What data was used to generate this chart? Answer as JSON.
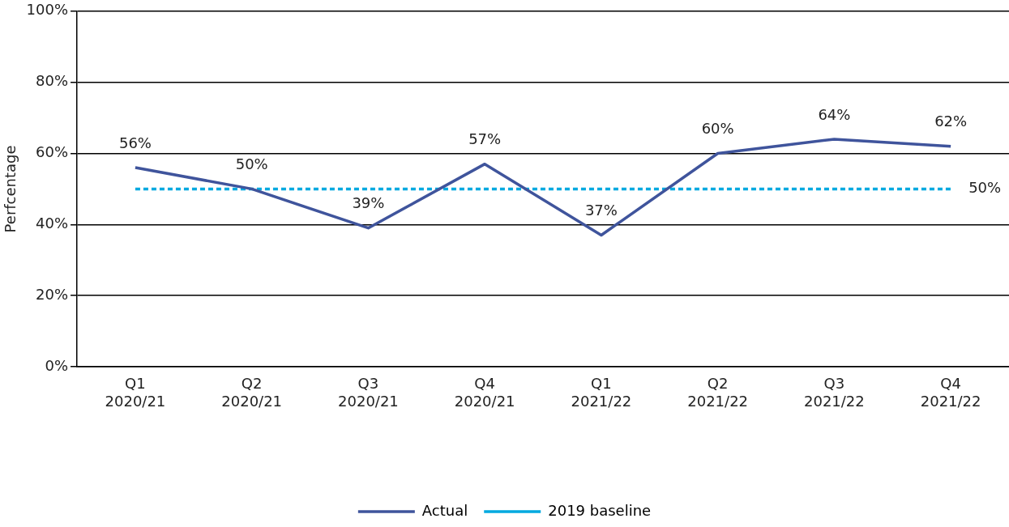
{
  "chart_data": {
    "type": "line",
    "ylabel": "Perfcentage",
    "categories": [
      "Q1\n2020/21",
      "Q2\n2020/21",
      "Q3\n2020/21",
      "Q4\n2020/21",
      "Q1\n2021/22",
      "Q2\n2021/22",
      "Q3\n2021/22",
      "Q4\n2021/22"
    ],
    "series": [
      {
        "name": "Actual",
        "color": "#3f549c",
        "line_style": "solid",
        "values": [
          56,
          50,
          39,
          57,
          37,
          60,
          64,
          62
        ],
        "value_labels": [
          "56%",
          "50%",
          "39%",
          "57%",
          "37%",
          "60%",
          "64%",
          "62%"
        ]
      },
      {
        "name": "2019 baseline",
        "color": "#00a9e0",
        "line_style": "dashed",
        "values": [
          50,
          50,
          50,
          50,
          50,
          50,
          50,
          50
        ],
        "value_labels": [
          null,
          null,
          null,
          null,
          null,
          null,
          null,
          "50%"
        ]
      }
    ],
    "ylim": [
      0,
      100
    ],
    "yticks": [
      {
        "value": 0,
        "label": "0%"
      },
      {
        "value": 20,
        "label": "20%"
      },
      {
        "value": 40,
        "label": "40%"
      },
      {
        "value": 60,
        "label": "60%"
      },
      {
        "value": 80,
        "label": "80%"
      },
      {
        "value": 100,
        "label": "100%"
      }
    ],
    "grid": "y",
    "legend": "bottom",
    "marker": "none"
  }
}
